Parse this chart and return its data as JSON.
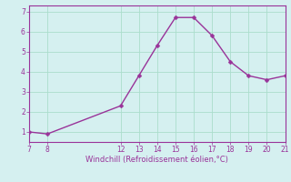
{
  "x": [
    7,
    8,
    12,
    13,
    14,
    15,
    16,
    17,
    18,
    19,
    20,
    21
  ],
  "y": [
    1.0,
    0.9,
    2.3,
    3.8,
    5.3,
    6.7,
    6.7,
    5.8,
    4.5,
    3.8,
    3.6,
    3.8
  ],
  "xlim": [
    7,
    21
  ],
  "ylim": [
    0.5,
    7.3
  ],
  "xticks": [
    7,
    8,
    12,
    13,
    14,
    15,
    16,
    17,
    18,
    19,
    20,
    21
  ],
  "yticks": [
    1,
    2,
    3,
    4,
    5,
    6,
    7
  ],
  "xlabel": "Windchill (Refroidissement éolien,°C)",
  "line_color": "#993399",
  "marker_color": "#993399",
  "bg_color": "#d5f0f0",
  "grid_color": "#aaddcc",
  "tick_label_color": "#993399",
  "xlabel_color": "#993399",
  "border_color": "#993399",
  "marker_size": 2.5,
  "line_width": 1.0
}
